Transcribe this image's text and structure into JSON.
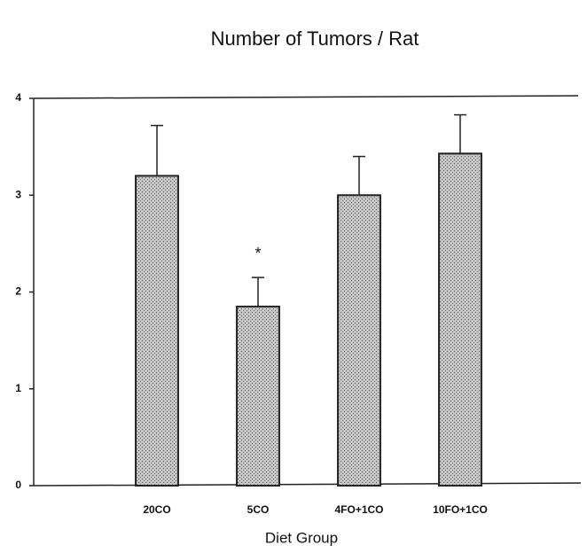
{
  "chart_data": {
    "type": "bar",
    "title": "Number of Tumors / Rat",
    "x_label": "Diet Group",
    "categories": [
      "20CO",
      "5CO",
      "4FO+1CO",
      "10FO+1CO"
    ],
    "values": [
      3.2,
      1.85,
      3.0,
      3.43
    ],
    "errors": [
      0.52,
      0.3,
      0.4,
      0.4
    ],
    "color": "#b8b8b8",
    "ylim": [
      0,
      4
    ],
    "yticks": [
      0,
      1,
      2,
      3,
      4
    ],
    "grid": false,
    "annotations": [
      {
        "text": "*",
        "category": "5CO"
      }
    ]
  }
}
